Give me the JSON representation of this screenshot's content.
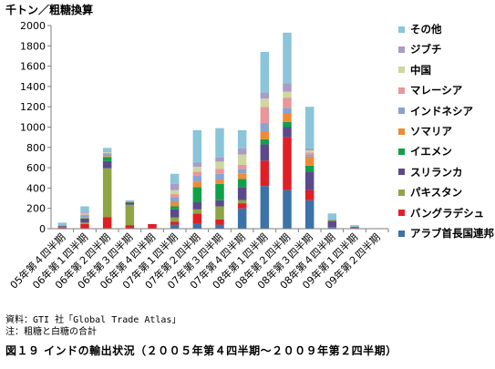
{
  "unit_label": "千トン／粗糖換算",
  "source": "資料：GTI 社「Global Trade Atlas」",
  "note": "注：粗糖と白糖の合計",
  "caption": "図１９ インドの輸出状況（２００５年第４四半期～２００９年第２四半期）",
  "colors": {
    "アラブ首長国連邦": "#3b73a9",
    "バングラデシュ": "#e01e25",
    "パキスタン": "#8fa544",
    "スリランカ": "#5b4a8b",
    "イエメン": "#11a04a",
    "ソマリア": "#ef8b34",
    "インドネシア": "#8aa3cf",
    "マレーシア": "#e9979a",
    "中国": "#ccd8a0",
    "ジブチ": "#a99cc6",
    "その他": "#8ac5d9"
  },
  "chart_data": {
    "type": "bar",
    "stacked": true,
    "categories": [
      "05年第４四半期",
      "06年第１四半期",
      "06年第２四半期",
      "06年第３四半期",
      "06年第４四半期",
      "07年第１四半期",
      "07年第２四半期",
      "07年第３四半期",
      "07年第４四半期",
      "08年第１四半期",
      "08年第２四半期",
      "08年第３四半期",
      "08年第４四半期",
      "09年第１四半期",
      "09年第２四半期"
    ],
    "ylim": [
      0,
      2000
    ],
    "yticks": [
      0,
      200,
      400,
      600,
      800,
      1000,
      1200,
      1400,
      1600,
      1800,
      2000
    ],
    "grid": false,
    "legend_position": "right",
    "series": [
      {
        "name": "アラブ首長国連邦",
        "values": [
          5,
          5,
          5,
          5,
          5,
          40,
          50,
          40,
          200,
          420,
          380,
          280,
          10,
          5,
          0
        ]
      },
      {
        "name": "バングラデシュ",
        "values": [
          10,
          40,
          110,
          30,
          40,
          30,
          100,
          50,
          50,
          250,
          520,
          100,
          5,
          2,
          0
        ]
      },
      {
        "name": "パキスタン",
        "values": [
          5,
          15,
          480,
          200,
          0,
          40,
          40,
          130,
          30,
          0,
          0,
          0,
          0,
          0,
          0
        ]
      },
      {
        "name": "スリランカ",
        "values": [
          10,
          40,
          70,
          20,
          0,
          80,
          70,
          60,
          130,
          160,
          100,
          180,
          60,
          10,
          0
        ]
      },
      {
        "name": "イエメン",
        "values": [
          0,
          5,
          40,
          5,
          0,
          30,
          150,
          160,
          80,
          50,
          50,
          60,
          5,
          0,
          0
        ]
      },
      {
        "name": "ソマリア",
        "values": [
          0,
          5,
          10,
          5,
          0,
          40,
          50,
          40,
          50,
          80,
          80,
          90,
          5,
          0,
          0
        ]
      },
      {
        "name": "インドネシア",
        "values": [
          0,
          20,
          20,
          5,
          0,
          50,
          60,
          60,
          50,
          80,
          60,
          20,
          5,
          0,
          0
        ]
      },
      {
        "name": "マレーシア",
        "values": [
          0,
          10,
          10,
          0,
          0,
          30,
          40,
          50,
          40,
          160,
          100,
          20,
          0,
          0,
          0
        ]
      },
      {
        "name": "中国",
        "values": [
          0,
          10,
          10,
          0,
          0,
          40,
          50,
          70,
          100,
          80,
          60,
          20,
          0,
          0,
          0
        ]
      },
      {
        "name": "ジブチ",
        "values": [
          0,
          10,
          10,
          5,
          0,
          60,
          40,
          40,
          60,
          60,
          80,
          20,
          0,
          0,
          0
        ]
      },
      {
        "name": "その他",
        "values": [
          30,
          60,
          30,
          5,
          0,
          100,
          320,
          290,
          180,
          400,
          500,
          410,
          60,
          18,
          5
        ]
      }
    ]
  }
}
